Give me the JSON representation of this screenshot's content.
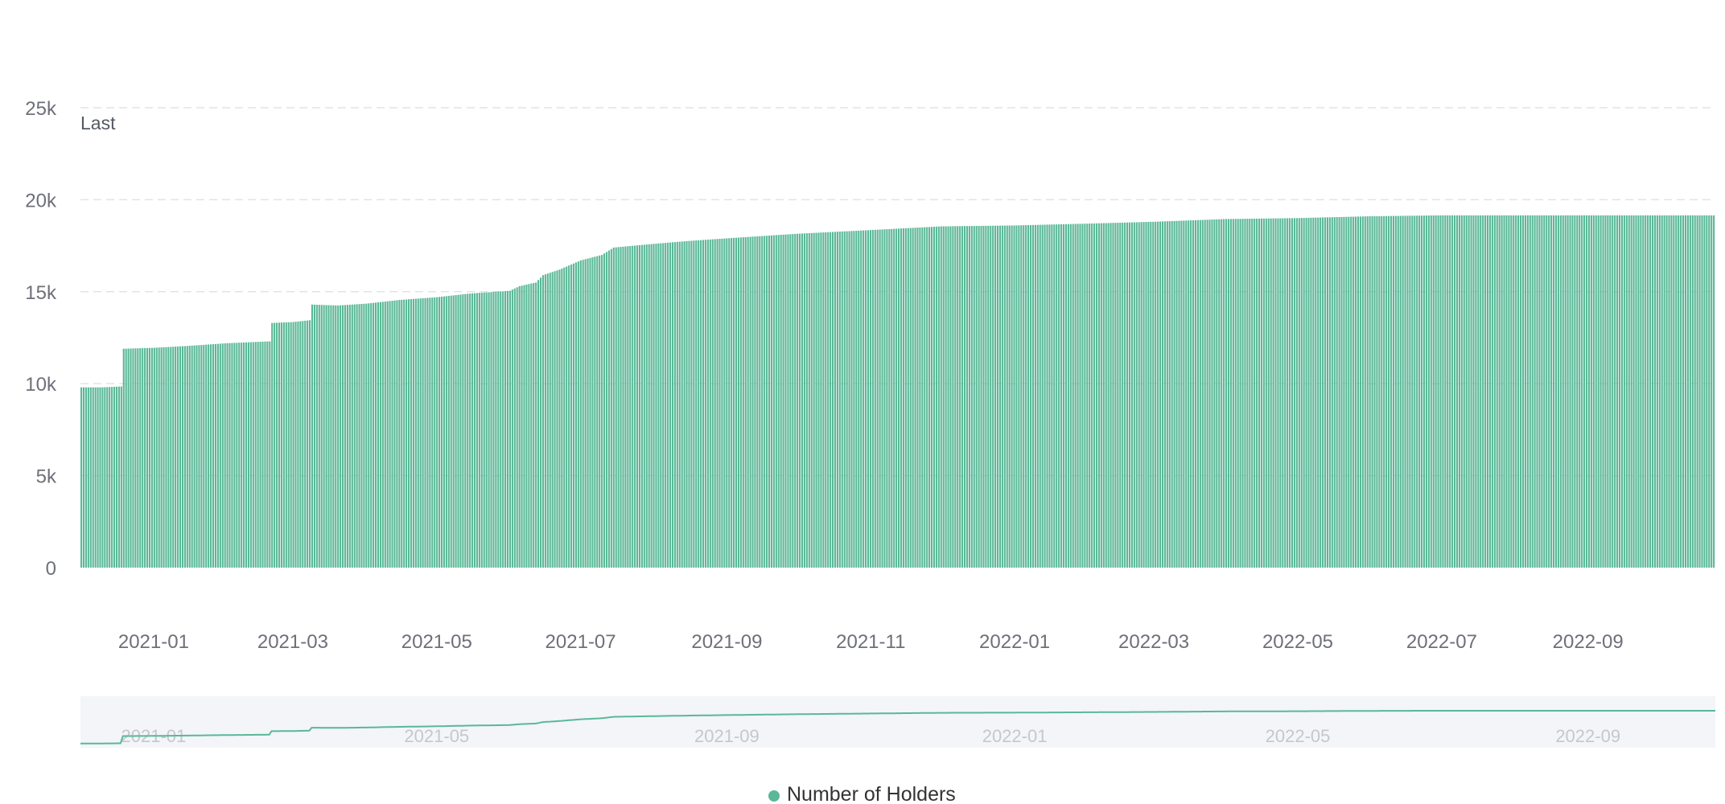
{
  "chart_data": {
    "type": "bar",
    "series": [
      {
        "name": "Number of Holders",
        "color": "#5ab897"
      }
    ],
    "annotations": [
      "Last"
    ],
    "yaxis": {
      "ticks": [
        "0",
        "5k",
        "10k",
        "15k",
        "20k",
        "25k"
      ],
      "ylim": [
        0,
        25000
      ]
    },
    "xaxis": {
      "type": "date",
      "range": [
        "2020-12-01",
        "2022-10-25"
      ],
      "ticks": [
        "2021-01",
        "2021-03",
        "2021-05",
        "2021-07",
        "2021-09",
        "2021-11",
        "2022-01",
        "2022-03",
        "2022-05",
        "2022-07",
        "2022-09"
      ]
    },
    "zoom_slider": {
      "ticks": [
        "2021-01",
        "2021-05",
        "2021-09",
        "2022-01",
        "2022-05",
        "2022-09"
      ]
    },
    "points": [
      [
        "2020-12-01",
        9800
      ],
      [
        "2020-12-10",
        9800
      ],
      [
        "2020-12-18",
        9850
      ],
      [
        "2020-12-19",
        11900
      ],
      [
        "2021-01-01",
        11950
      ],
      [
        "2021-01-15",
        12050
      ],
      [
        "2021-02-01",
        12200
      ],
      [
        "2021-02-19",
        12300
      ],
      [
        "2021-02-20",
        13300
      ],
      [
        "2021-03-01",
        13350
      ],
      [
        "2021-03-08",
        13450
      ],
      [
        "2021-03-09",
        14300
      ],
      [
        "2021-03-20",
        14250
      ],
      [
        "2021-04-01",
        14350
      ],
      [
        "2021-04-15",
        14550
      ],
      [
        "2021-05-01",
        14700
      ],
      [
        "2021-05-15",
        14900
      ],
      [
        "2021-06-01",
        15050
      ],
      [
        "2021-06-05",
        15300
      ],
      [
        "2021-06-12",
        15500
      ],
      [
        "2021-06-15",
        15900
      ],
      [
        "2021-06-22",
        16200
      ],
      [
        "2021-07-01",
        16700
      ],
      [
        "2021-07-10",
        17000
      ],
      [
        "2021-07-15",
        17400
      ],
      [
        "2021-08-01",
        17600
      ],
      [
        "2021-08-15",
        17750
      ],
      [
        "2021-09-01",
        17900
      ],
      [
        "2021-10-01",
        18150
      ],
      [
        "2021-11-01",
        18350
      ],
      [
        "2021-12-01",
        18550
      ],
      [
        "2022-01-01",
        18600
      ],
      [
        "2022-02-01",
        18700
      ],
      [
        "2022-03-01",
        18800
      ],
      [
        "2022-04-01",
        18950
      ],
      [
        "2022-05-01",
        19000
      ],
      [
        "2022-06-01",
        19100
      ],
      [
        "2022-07-01",
        19150
      ],
      [
        "2022-08-01",
        19150
      ],
      [
        "2022-09-01",
        19150
      ],
      [
        "2022-10-25",
        19150
      ]
    ]
  }
}
